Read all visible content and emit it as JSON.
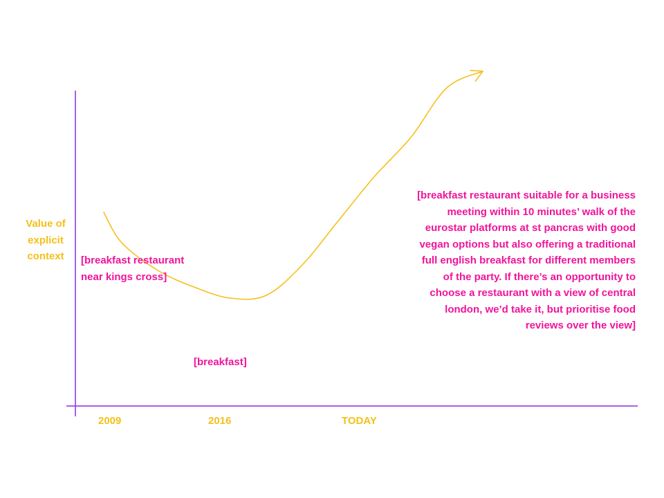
{
  "chart_data": {
    "type": "line",
    "title": "",
    "xlabel": "",
    "ylabel": "Value of explicit context",
    "x_ticks": [
      "2009",
      "2016",
      "TODAY"
    ],
    "y_ticks": [],
    "grid": false,
    "legend": "none",
    "arrow_at_end": true,
    "series": [
      {
        "x": [
          2009,
          2010,
          2012,
          2014,
          2016,
          2018,
          2020,
          2022,
          2024,
          2026,
          2028,
          2030
        ],
        "y": [
          0.49,
          0.38,
          0.28,
          0.22,
          0.18,
          0.19,
          0.3,
          0.46,
          0.62,
          0.76,
          0.94,
          1.0
        ],
        "color": "#f4c01a"
      }
    ],
    "annotations": [
      {
        "x": "2009",
        "text": "[breakfast restaurant near kings cross]",
        "color": "#f0149b"
      },
      {
        "x": "2016",
        "text": "[breakfast]",
        "color": "#f0149b"
      },
      {
        "x": "TODAY",
        "text": "[breakfast restaurant suitable for a business meeting within 10 minutes’ walk of the eurostar platforms at st pancras with good vegan options but also offering a traditional full english breakfast for different members of the party. If there’s an opportunity to choose a restaurant with a view of central london, we’d take it, but prioritise food reviews over the view]",
        "color": "#f0149b"
      }
    ]
  },
  "colors": {
    "axis": "#8a2be2",
    "line": "#f4c01a",
    "label": "#f4c01a",
    "annotation": "#f0149b"
  },
  "labels": {
    "ylabel_lines": [
      "Value of",
      "explicit",
      "context"
    ],
    "ann_2009_lines": [
      "[breakfast restaurant",
      "near kings cross]"
    ],
    "ann_2016_lines": [
      "[breakfast]"
    ],
    "ann_today_lines": [
      "[breakfast restaurant suitable for a business",
      "meeting within 10 minutes’ walk of the",
      "eurostar platforms at st pancras with good",
      "vegan options but also offering a traditional",
      "full english breakfast for different members",
      "of the party. If there’s an opportunity to",
      "choose a restaurant with a view of central",
      "london, we’d take it, but prioritise food",
      "reviews over the view]"
    ]
  }
}
